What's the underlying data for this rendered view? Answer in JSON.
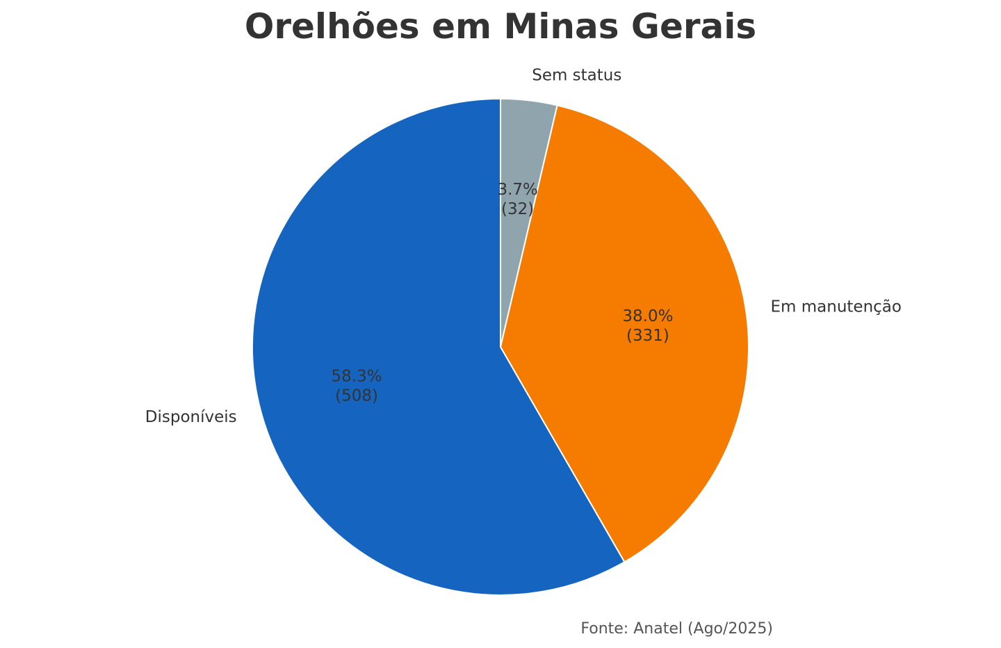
{
  "chart_data": {
    "type": "pie",
    "title": "Orelhões em Minas Gerais",
    "start_angle_deg": 90,
    "direction": "clockwise",
    "slices": [
      {
        "label": "Sem status",
        "value": 32,
        "percent_label": "3.7%",
        "count_label": "(32)",
        "color": "#90A4AE"
      },
      {
        "label": "Em manutenção",
        "value": 331,
        "percent_label": "38.0%",
        "count_label": "(331)",
        "color": "#F57C00"
      },
      {
        "label": "Disponíveis",
        "value": 508,
        "percent_label": "58.3%",
        "count_label": "(508)",
        "color": "#1565C0"
      }
    ],
    "source_note": "Fonte: Anatel (Ago/2025)"
  }
}
